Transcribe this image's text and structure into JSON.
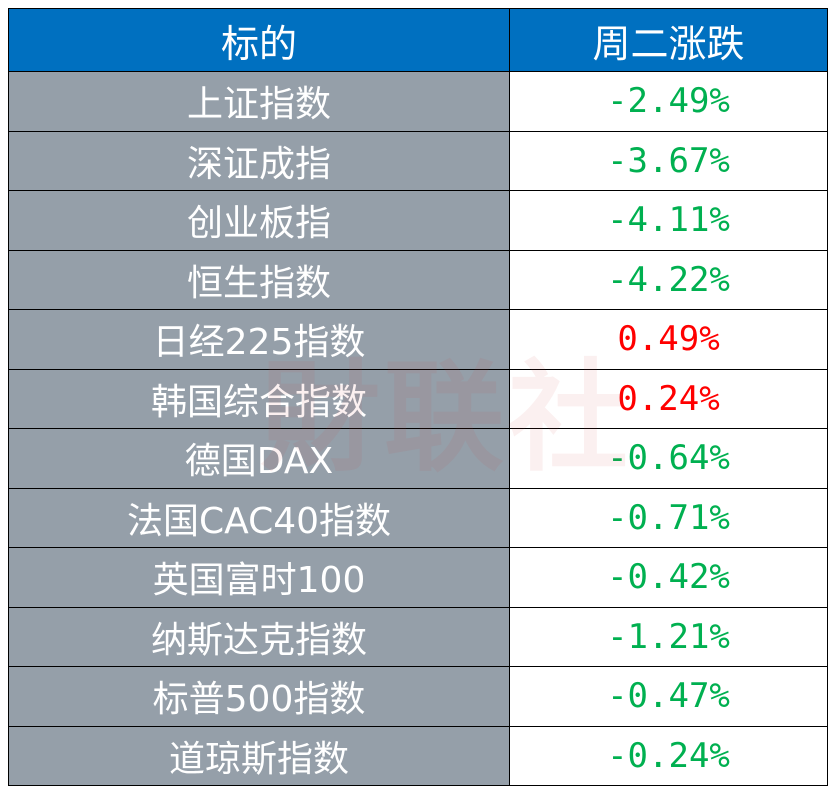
{
  "header": {
    "col1": "标的",
    "col2": "周二涨跌"
  },
  "colors": {
    "header_bg": "#0070C0",
    "name_bg": "#959FA9",
    "up": "#FF0000",
    "down": "#00B050"
  },
  "watermark": "财联社",
  "rows": [
    {
      "name": "上证指数",
      "change": "-2.49%",
      "dir": "down"
    },
    {
      "name": "深证成指",
      "change": "-3.67%",
      "dir": "down"
    },
    {
      "name": "创业板指",
      "change": "-4.11%",
      "dir": "down"
    },
    {
      "name": "恒生指数",
      "change": "-4.22%",
      "dir": "down"
    },
    {
      "name": "日经225指数",
      "change": "0.49%",
      "dir": "up"
    },
    {
      "name": "韩国综合指数",
      "change": "0.24%",
      "dir": "up"
    },
    {
      "name": "德国DAX",
      "change": "-0.64%",
      "dir": "down"
    },
    {
      "name": "法国CAC40指数",
      "change": "-0.71%",
      "dir": "down"
    },
    {
      "name": "英国富时100",
      "change": "-0.42%",
      "dir": "down"
    },
    {
      "name": "纳斯达克指数",
      "change": "-1.21%",
      "dir": "down"
    },
    {
      "name": "标普500指数",
      "change": "-0.47%",
      "dir": "down"
    },
    {
      "name": "道琼斯指数",
      "change": "-0.24%",
      "dir": "down"
    }
  ]
}
